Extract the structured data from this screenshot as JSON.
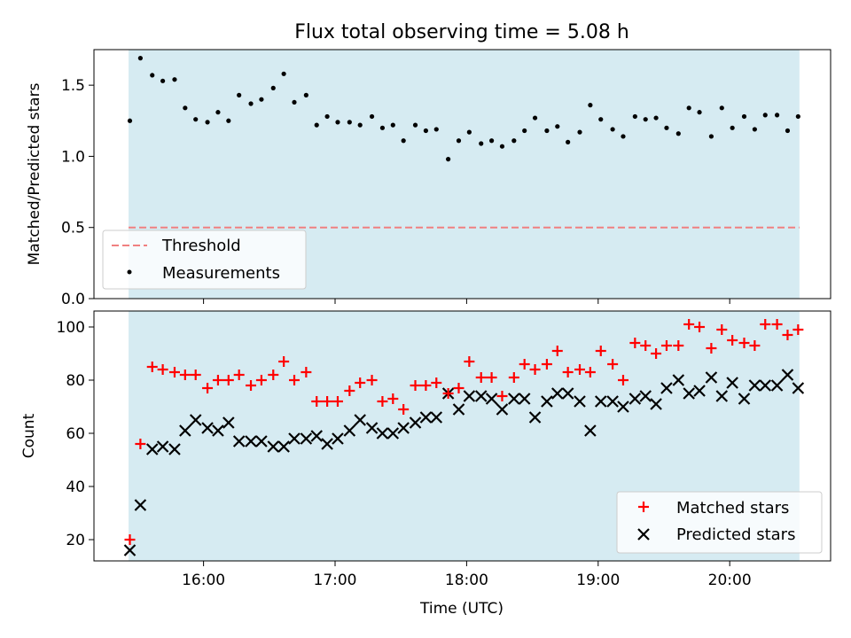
{
  "figure": {
    "title": "Flux total observing time = 5.08 h"
  },
  "chart_data": [
    {
      "type": "scatter",
      "ylabel": "Matched/Predicted stars",
      "ylim": [
        0.0,
        1.75
      ],
      "yticks": [
        0.0,
        0.5,
        1.0,
        1.5
      ],
      "ytick_labels": [
        "0.0",
        "0.5",
        "1.0",
        "1.5"
      ],
      "xlim": [
        15.167,
        20.767
      ],
      "shaded_span": [
        15.43,
        20.53
      ],
      "threshold": 0.5,
      "legend_position": "lower left",
      "colors": {
        "threshold": "#f08080",
        "measurements": "#000000",
        "shade": "#add8e6"
      },
      "series": [
        {
          "name": "Threshold",
          "kind": "line"
        },
        {
          "name": "Measurements",
          "kind": "dots",
          "x": [
            15.44,
            15.52,
            15.61,
            15.69,
            15.78,
            15.86,
            15.94,
            16.03,
            16.11,
            16.19,
            16.27,
            16.36,
            16.44,
            16.53,
            16.61,
            16.69,
            16.78,
            16.86,
            16.94,
            17.02,
            17.11,
            17.19,
            17.28,
            17.36,
            17.44,
            17.52,
            17.61,
            17.69,
            17.77,
            17.86,
            17.94,
            18.02,
            18.11,
            18.19,
            18.27,
            18.36,
            18.44,
            18.52,
            18.61,
            18.69,
            18.77,
            18.86,
            18.94,
            19.02,
            19.11,
            19.19,
            19.28,
            19.36,
            19.44,
            19.52,
            19.61,
            19.69,
            19.77,
            19.86,
            19.94,
            20.02,
            20.11,
            20.19,
            20.27,
            20.36,
            20.44,
            20.52
          ],
          "y": [
            1.25,
            1.69,
            1.57,
            1.53,
            1.54,
            1.34,
            1.26,
            1.24,
            1.31,
            1.25,
            1.43,
            1.37,
            1.4,
            1.48,
            1.58,
            1.38,
            1.43,
            1.22,
            1.28,
            1.24,
            1.24,
            1.22,
            1.28,
            1.2,
            1.22,
            1.11,
            1.22,
            1.18,
            1.19,
            0.98,
            1.11,
            1.17,
            1.09,
            1.11,
            1.07,
            1.11,
            1.18,
            1.27,
            1.18,
            1.21,
            1.1,
            1.17,
            1.36,
            1.26,
            1.19,
            1.14,
            1.28,
            1.26,
            1.27,
            1.2,
            1.16,
            1.34,
            1.31,
            1.14,
            1.34,
            1.2,
            1.28,
            1.19,
            1.29,
            1.29,
            1.18,
            1.28
          ]
        }
      ]
    },
    {
      "type": "scatter",
      "ylabel": "Count",
      "xlabel": "Time (UTC)",
      "ylim": [
        12,
        106
      ],
      "yticks": [
        20,
        40,
        60,
        80,
        100
      ],
      "ytick_labels": [
        "20",
        "40",
        "60",
        "80",
        "100"
      ],
      "xlim": [
        15.167,
        20.767
      ],
      "xticks": [
        16,
        17,
        18,
        19,
        20
      ],
      "xtick_labels": [
        "16:00",
        "17:00",
        "18:00",
        "19:00",
        "20:00"
      ],
      "shaded_span": [
        15.43,
        20.53
      ],
      "legend_position": "lower right",
      "colors": {
        "matched": "#ff0000",
        "predicted": "#000000",
        "shade": "#add8e6"
      },
      "series": [
        {
          "name": "Matched stars",
          "marker": "+",
          "x": [
            15.44,
            15.52,
            15.61,
            15.69,
            15.78,
            15.86,
            15.94,
            16.03,
            16.11,
            16.19,
            16.27,
            16.36,
            16.44,
            16.53,
            16.61,
            16.69,
            16.78,
            16.86,
            16.94,
            17.02,
            17.11,
            17.19,
            17.28,
            17.36,
            17.44,
            17.52,
            17.61,
            17.69,
            17.77,
            17.86,
            17.94,
            18.02,
            18.11,
            18.19,
            18.27,
            18.36,
            18.44,
            18.52,
            18.61,
            18.69,
            18.77,
            18.86,
            18.94,
            19.02,
            19.11,
            19.19,
            19.28,
            19.36,
            19.44,
            19.52,
            19.61,
            19.69,
            19.77,
            19.86,
            19.94,
            20.02,
            20.11,
            20.19,
            20.27,
            20.36,
            20.44,
            20.52
          ],
          "y": [
            20,
            56,
            85,
            84,
            83,
            82,
            82,
            77,
            80,
            80,
            82,
            78,
            80,
            82,
            87,
            80,
            83,
            72,
            72,
            72,
            76,
            79,
            80,
            72,
            73,
            69,
            78,
            78,
            79,
            75,
            77,
            87,
            81,
            81,
            74,
            81,
            86,
            84,
            86,
            91,
            83,
            84,
            83,
            91,
            86,
            80,
            94,
            93,
            90,
            93,
            93,
            101,
            100,
            92,
            99,
            95,
            94,
            93,
            101,
            101,
            97,
            99
          ]
        },
        {
          "name": "Predicted stars",
          "marker": "x",
          "x": [
            15.44,
            15.52,
            15.61,
            15.69,
            15.78,
            15.86,
            15.94,
            16.03,
            16.11,
            16.19,
            16.27,
            16.36,
            16.44,
            16.53,
            16.61,
            16.69,
            16.78,
            16.86,
            16.94,
            17.02,
            17.11,
            17.19,
            17.28,
            17.36,
            17.44,
            17.52,
            17.61,
            17.69,
            17.77,
            17.86,
            17.94,
            18.02,
            18.11,
            18.19,
            18.27,
            18.36,
            18.44,
            18.52,
            18.61,
            18.69,
            18.77,
            18.86,
            18.94,
            19.02,
            19.11,
            19.19,
            19.28,
            19.36,
            19.44,
            19.52,
            19.61,
            19.69,
            19.77,
            19.86,
            19.94,
            20.02,
            20.11,
            20.19,
            20.27,
            20.36,
            20.44,
            20.52
          ],
          "y": [
            16,
            33,
            54,
            55,
            54,
            61,
            65,
            62,
            61,
            64,
            57,
            57,
            57,
            55,
            55,
            58,
            58,
            59,
            56,
            58,
            61,
            65,
            62,
            60,
            60,
            62,
            64,
            66,
            66,
            75,
            69,
            74,
            74,
            73,
            69,
            73,
            73,
            66,
            72,
            75,
            75,
            72,
            61,
            72,
            72,
            70,
            73,
            74,
            71,
            77,
            80,
            75,
            76,
            81,
            74,
            79,
            73,
            78,
            78,
            78,
            82,
            77
          ]
        }
      ]
    }
  ]
}
